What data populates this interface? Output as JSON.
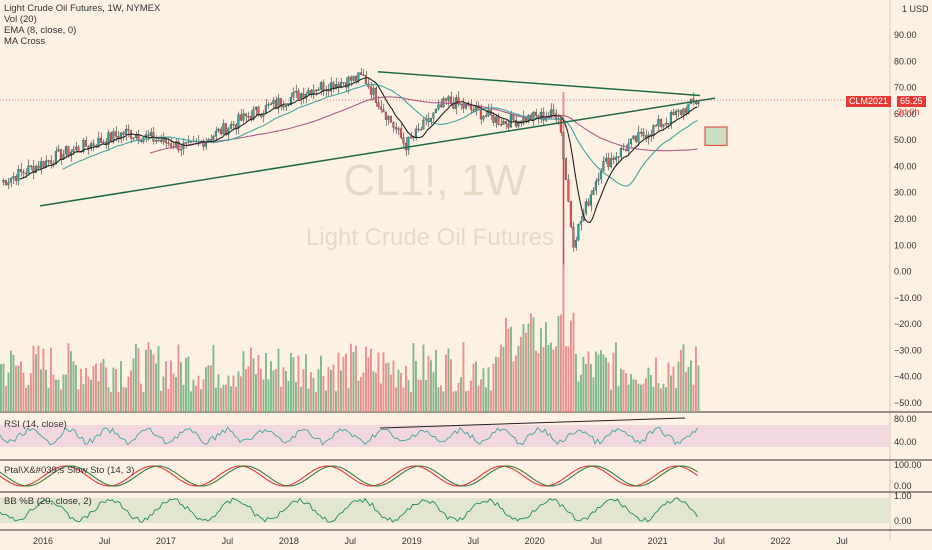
{
  "legend": {
    "title": "Light Crude Oil Futures, 1W, NYMEX",
    "vol": "Vol (20)",
    "ema": "EMA (8, close, 0)",
    "ma": "MA Cross"
  },
  "watermark": {
    "symbol": "CL1!, 1W",
    "name": "Light Crude Oil Futures"
  },
  "price_axis": {
    "unit_label": "1 USD",
    "ticks": [
      "90.00",
      "80.00",
      "70.00",
      "60.00",
      "50.00",
      "40.00",
      "30.00",
      "20.00",
      "10.00",
      "0.00",
      "−10.00",
      "−20.00",
      "−30.00",
      "−40.00",
      "−50.00"
    ],
    "tick_values": [
      90,
      80,
      70,
      60,
      50,
      40,
      30,
      20,
      10,
      0,
      -10,
      -20,
      -30,
      -40,
      -50
    ]
  },
  "last_price": {
    "symbol": "CLM2021",
    "value": "65.25",
    "countdown": "3d 0h"
  },
  "time_axis": [
    "2016",
    "Jul",
    "2017",
    "Jul",
    "2018",
    "Jul",
    "2019",
    "Jul",
    "2020",
    "Jul",
    "2021",
    "Jul",
    "2022",
    "Jul"
  ],
  "rsi": {
    "label": "RSI (14, close)",
    "ticks": [
      "80.00",
      "40.00"
    ]
  },
  "stoch": {
    "label": "Ptal\\X&#039;s Slow Sto (14, 3)",
    "ticks": [
      "100.00",
      "0.00"
    ]
  },
  "bb": {
    "label": "BB %B (20, close, 2)",
    "ticks": [
      "1.00",
      "0.00"
    ]
  },
  "colors": {
    "up": "#26a69a",
    "down": "#ef5350",
    "bg": "#fdf1e3",
    "ma_slow": "#b05a8a",
    "ma_fast": "#3fa7a0",
    "trend": "#1e6b45"
  },
  "chart_data": {
    "type": "candlestick",
    "title": "Light Crude Oil Futures, 1W, NYMEX",
    "ylim": [
      -55,
      95
    ],
    "series": [
      {
        "name": "price",
        "x": [
          "2016-01",
          "2016-07",
          "2017-01",
          "2017-07",
          "2018-01",
          "2018-07",
          "2018-10",
          "2019-01",
          "2019-04",
          "2019-07",
          "2020-01",
          "2020-04",
          "2020-07",
          "2021-01",
          "2021-04",
          "2021-06"
        ],
        "values": [
          34,
          45,
          53,
          47,
          60,
          70,
          74,
          48,
          65,
          57,
          60,
          11,
          40,
          52,
          60,
          65.25
        ]
      }
    ],
    "annotations": [
      "trendline upper",
      "trendline lower",
      "target box 48-55"
    ],
    "last": 65.25
  }
}
